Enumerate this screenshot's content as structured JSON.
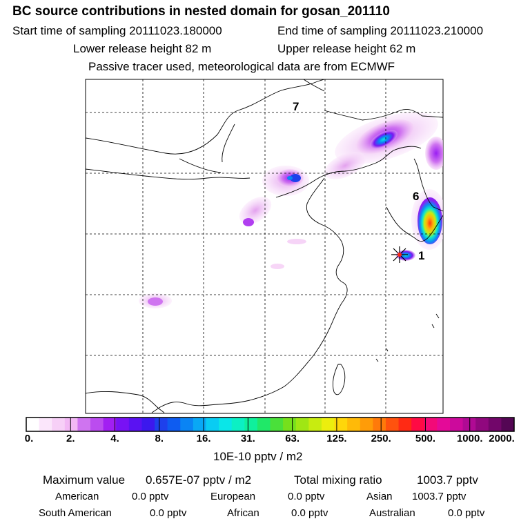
{
  "title": "BC  source contributions in nested domain for gosan_201110",
  "header": {
    "start_label": "Start time of sampling 20111023.180000",
    "end_label": "End time of sampling 20111023.210000",
    "lower_label": "Lower release height   82 m",
    "upper_label": "Upper release height   62 m",
    "note": "Passive tracer used, meteorological data are from ECMWF"
  },
  "map": {
    "region_labels": [
      "7",
      "6",
      "1"
    ],
    "receptor": "gosan"
  },
  "colorbar": {
    "ticks": [
      "0.",
      "2.",
      "4.",
      "8.",
      "16.",
      "31.",
      "63.",
      "125.",
      "250.",
      "500.",
      "1000.",
      "2000."
    ],
    "colors": [
      "#ffffff",
      "#fbe6fb",
      "#f7d0f7",
      "#f2b8f4",
      "#cf74f0",
      "#bb4cef",
      "#a21ff2",
      "#7812f4",
      "#5a12f2",
      "#3c18ee",
      "#1e40ec",
      "#0e5cf1",
      "#0a84f4",
      "#09a8f5",
      "#09ccf3",
      "#0ae6e8",
      "#0cf0c4",
      "#0ff09c",
      "#20e868",
      "#4ae03a",
      "#76e01c",
      "#a0e614",
      "#c8ec10",
      "#ecee0e",
      "#ffd60a",
      "#ffba08",
      "#ff9c08",
      "#ff7a0a",
      "#ff520e",
      "#ff2a14",
      "#ff0a44",
      "#f20a78",
      "#e40a98",
      "#cc0a9c",
      "#b00a94",
      "#90087e",
      "#72066a",
      "#540654"
    ],
    "unit": "10E-10 pptv / m2"
  },
  "summary": {
    "max_label": "Maximum value",
    "max_value": "0.657E-07 pptv / m2",
    "total_label": "Total mixing ratio",
    "total_value": "1003.7 pptv",
    "sources": [
      {
        "name": "American",
        "value": "0.0 pptv"
      },
      {
        "name": "European",
        "value": "0.0 pptv"
      },
      {
        "name": "Asian",
        "value": "1003.7 pptv"
      },
      {
        "name": "South American",
        "value": "0.0 pptv"
      },
      {
        "name": "African",
        "value": "0.0 pptv"
      },
      {
        "name": "Australian",
        "value": "0.0 pptv"
      }
    ]
  }
}
